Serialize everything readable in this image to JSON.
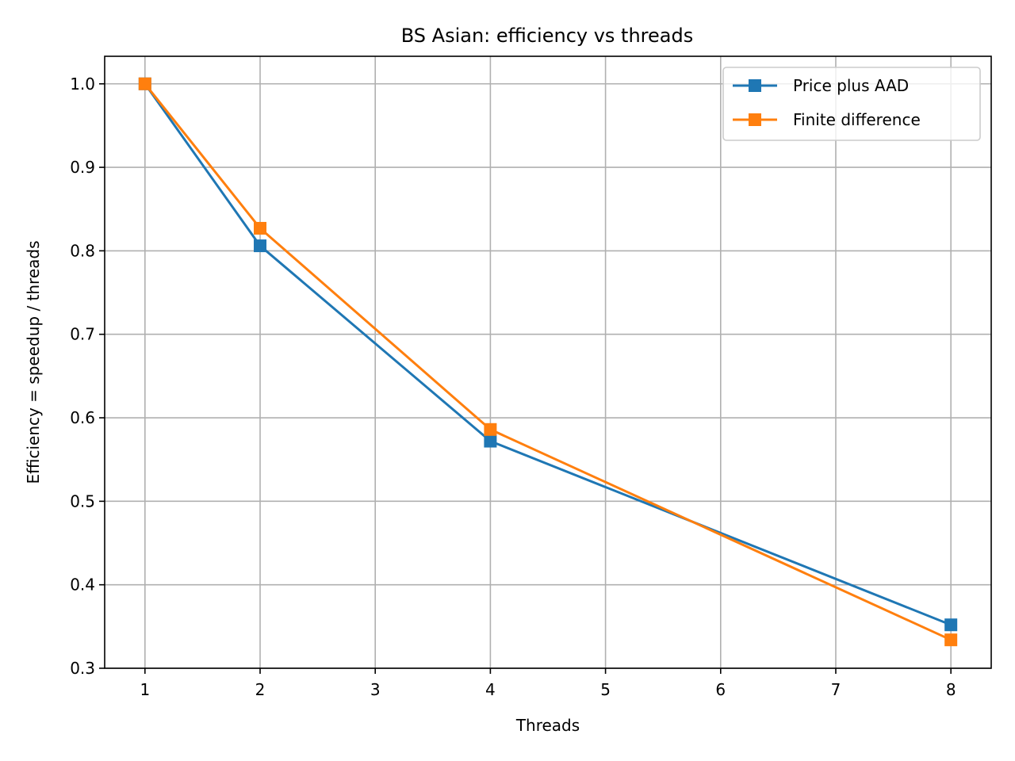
{
  "chart_data": {
    "type": "line",
    "title": "BS Asian: efficiency vs threads",
    "xlabel": "Threads",
    "ylabel": "Efficiency = speedup / threads",
    "xlim": [
      0.65,
      8.35
    ],
    "ylim": [
      0.3,
      1.033
    ],
    "xticks": [
      1,
      2,
      3,
      4,
      5,
      6,
      7,
      8
    ],
    "yticks": [
      0.3,
      0.4,
      0.5,
      0.6,
      0.7,
      0.8,
      0.9,
      1.0
    ],
    "ytick_labels": [
      "0.3",
      "0.4",
      "0.5",
      "0.6",
      "0.7",
      "0.8",
      "0.9",
      "1.0"
    ],
    "grid": true,
    "legend_position": "top-right",
    "series": [
      {
        "name": "Price plus AAD",
        "color": "#1f77b4",
        "marker": "square",
        "x": [
          1,
          2,
          4,
          8
        ],
        "y": [
          1.0,
          0.806,
          0.572,
          0.352
        ]
      },
      {
        "name": "Finite difference",
        "color": "#ff7f0e",
        "marker": "square",
        "x": [
          1,
          2,
          4,
          8
        ],
        "y": [
          1.0,
          0.827,
          0.586,
          0.334
        ]
      }
    ]
  }
}
